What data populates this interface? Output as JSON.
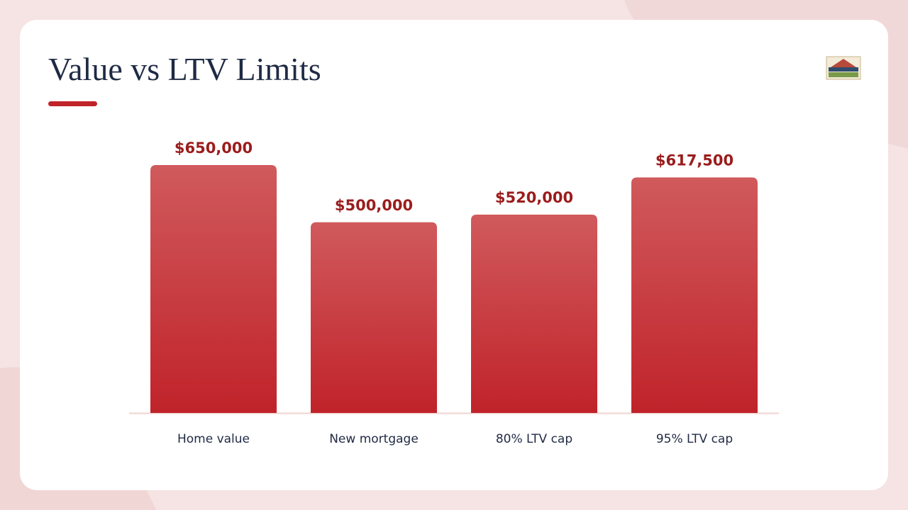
{
  "chart_data": {
    "type": "bar",
    "title": "Value vs LTV Limits",
    "categories": [
      "Home value",
      "New mortgage",
      "80% LTV cap",
      "95% LTV cap"
    ],
    "values": [
      650000,
      500000,
      520000,
      617500
    ],
    "value_labels": [
      "$650,000",
      "$500,000",
      "$520,000",
      "$617,500"
    ],
    "color": "#c62a30"
  }
}
